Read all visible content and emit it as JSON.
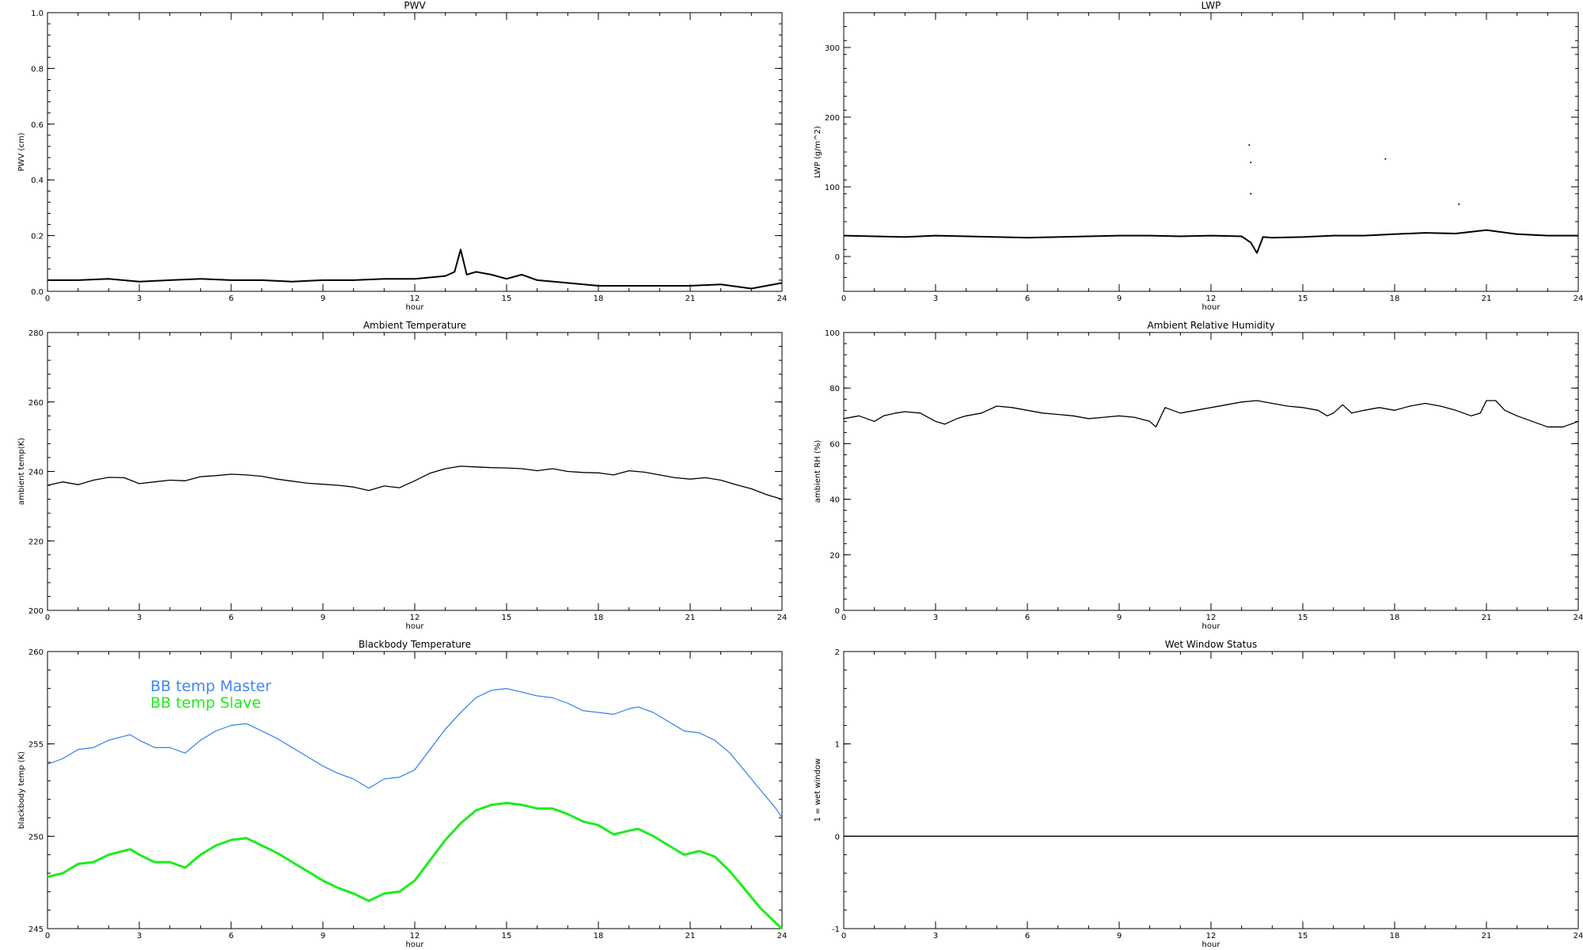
{
  "chart_data": [
    {
      "type": "line",
      "title": "PWV",
      "xlabel": "hour",
      "ylabel": "PWV (cm)",
      "xlim": [
        0,
        24
      ],
      "ylim": [
        0.0,
        1.0
      ],
      "xticks": [
        "0",
        "3",
        "6",
        "9",
        "12",
        "15",
        "18",
        "21",
        "24"
      ],
      "yticks": [
        "0.0",
        "0.2",
        "0.4",
        "0.6",
        "0.8",
        "1.0"
      ],
      "series": [
        {
          "color": "#000000",
          "x": [
            0,
            1,
            2,
            3,
            4,
            5,
            6,
            7,
            8,
            9,
            10,
            11,
            12,
            13,
            13.3,
            13.5,
            13.7,
            14,
            14.5,
            15,
            15.5,
            16,
            17,
            18,
            19,
            20,
            21,
            22,
            23,
            24
          ],
          "y": [
            0.04,
            0.04,
            0.045,
            0.035,
            0.04,
            0.045,
            0.04,
            0.04,
            0.035,
            0.04,
            0.04,
            0.045,
            0.045,
            0.055,
            0.07,
            0.15,
            0.06,
            0.07,
            0.06,
            0.045,
            0.06,
            0.04,
            0.03,
            0.02,
            0.02,
            0.02,
            0.02,
            0.025,
            0.01,
            0.03
          ]
        }
      ]
    },
    {
      "type": "line",
      "title": "LWP",
      "xlabel": "hour",
      "ylabel": "LWP (g/m^2)",
      "xlim": [
        0,
        24
      ],
      "ylim": [
        -50,
        350
      ],
      "xticks": [
        "0",
        "3",
        "6",
        "9",
        "12",
        "15",
        "18",
        "21",
        "24"
      ],
      "yticks": [
        "0",
        "100",
        "200",
        "300"
      ],
      "series": [
        {
          "color": "#000000",
          "x": [
            0,
            1,
            2,
            3,
            4,
            5,
            6,
            7,
            8,
            9,
            10,
            11,
            12,
            13,
            13.3,
            13.5,
            13.7,
            14,
            15,
            16,
            17,
            18,
            19,
            20,
            21,
            22,
            23,
            24
          ],
          "y": [
            30,
            29,
            28,
            30,
            29,
            28,
            27,
            28,
            29,
            30,
            30,
            29,
            30,
            29,
            20,
            5,
            28,
            27,
            28,
            30,
            30,
            32,
            34,
            33,
            38,
            32,
            30,
            30
          ]
        }
      ],
      "points": [
        {
          "x": 13.25,
          "y": 160
        },
        {
          "x": 13.3,
          "y": 135
        },
        {
          "x": 13.3,
          "y": 90
        },
        {
          "x": 17.7,
          "y": 140
        },
        {
          "x": 20.1,
          "y": 75
        }
      ]
    },
    {
      "type": "line",
      "title": "Ambient Temperature",
      "xlabel": "hour",
      "ylabel": "ambient temp(K)",
      "xlim": [
        0,
        24
      ],
      "ylim": [
        200,
        280
      ],
      "xticks": [
        "0",
        "3",
        "6",
        "9",
        "12",
        "15",
        "18",
        "21",
        "24"
      ],
      "yticks": [
        "200",
        "220",
        "240",
        "260",
        "280"
      ],
      "series": [
        {
          "color": "#000000",
          "x": [
            0,
            0.5,
            1,
            1.5,
            2,
            2.5,
            3,
            3.5,
            4,
            4.5,
            5,
            5.5,
            6,
            6.5,
            7,
            7.5,
            8,
            8.5,
            9,
            9.5,
            10,
            10.5,
            11,
            11.5,
            12,
            12.5,
            13,
            13.5,
            14,
            14.5,
            15,
            15.5,
            16,
            16.5,
            17,
            17.5,
            18,
            18.5,
            19,
            19.5,
            20,
            20.5,
            21,
            21.5,
            22,
            22.5,
            23,
            23.5,
            24
          ],
          "y": [
            236,
            237,
            236.2,
            237.5,
            238.3,
            238.2,
            236.5,
            237,
            237.5,
            237.3,
            238.5,
            238.8,
            239.2,
            239,
            238.6,
            237.8,
            237.2,
            236.6,
            236.3,
            236,
            235.5,
            234.5,
            235.8,
            235.3,
            237.3,
            239.5,
            240.8,
            241.5,
            241.3,
            241.1,
            241,
            240.8,
            240.2,
            240.8,
            240,
            239.7,
            239.6,
            239,
            240.2,
            239.8,
            239,
            238.2,
            237.8,
            238.2,
            237.5,
            236.2,
            235,
            233.3,
            232
          ]
        }
      ]
    },
    {
      "type": "line",
      "title": "Ambient Relative Humidity",
      "xlabel": "hour",
      "ylabel": "ambient RH (%)",
      "xlim": [
        0,
        24
      ],
      "ylim": [
        0,
        100
      ],
      "xticks": [
        "0",
        "3",
        "6",
        "9",
        "12",
        "15",
        "18",
        "21",
        "24"
      ],
      "yticks": [
        "0",
        "20",
        "40",
        "60",
        "80",
        "100"
      ],
      "series": [
        {
          "color": "#000000",
          "x": [
            0,
            0.5,
            1,
            1.3,
            1.7,
            2,
            2.5,
            3,
            3.3,
            3.7,
            4,
            4.5,
            5,
            5.5,
            6,
            6.5,
            7,
            7.5,
            8,
            8.5,
            9,
            9.5,
            10,
            10.2,
            10.5,
            11,
            11.5,
            12,
            12.5,
            13,
            13.5,
            14,
            14.5,
            15,
            15.5,
            15.8,
            16,
            16.3,
            16.6,
            17,
            17.5,
            18,
            18.5,
            19,
            19.5,
            20,
            20.5,
            20.8,
            21,
            21.3,
            21.6,
            22,
            22.5,
            23,
            23.5,
            24
          ],
          "y": [
            69,
            70,
            68,
            70,
            71,
            71.5,
            71,
            68,
            67,
            69,
            70,
            71,
            73.5,
            73,
            72,
            71,
            70.5,
            70,
            69,
            69.5,
            70,
            69.5,
            68,
            66,
            73,
            71,
            72,
            73,
            74,
            75,
            75.5,
            74.5,
            73.5,
            73,
            72,
            70,
            71,
            74,
            71,
            72,
            73,
            72,
            73.5,
            74.5,
            73.5,
            72,
            70,
            71,
            75.5,
            75.5,
            72,
            70,
            68,
            66,
            66,
            68
          ]
        }
      ]
    },
    {
      "type": "line",
      "title": "Blackbody Temperature",
      "xlabel": "hour",
      "ylabel": "blackbody temp (K)",
      "xlim": [
        0,
        24
      ],
      "ylim": [
        245,
        260
      ],
      "xticks": [
        "0",
        "3",
        "6",
        "9",
        "12",
        "15",
        "18",
        "21",
        "24"
      ],
      "yticks": [
        "245",
        "250",
        "255",
        "260"
      ],
      "legend": "top-left",
      "series": [
        {
          "name": "BB temp Master",
          "color": "#3f86f5",
          "x": [
            0,
            0.5,
            1,
            1.5,
            2,
            2.7,
            3,
            3.5,
            4,
            4.5,
            5,
            5.5,
            6,
            6.5,
            7,
            7.5,
            8,
            8.5,
            9,
            9.5,
            10,
            10.5,
            11,
            11.5,
            12,
            12.5,
            13,
            13.5,
            14,
            14.5,
            15,
            15.5,
            16,
            16.5,
            17,
            17.5,
            18,
            18.5,
            19,
            19.3,
            19.8,
            20.3,
            20.8,
            21.3,
            21.8,
            22.3,
            22.8,
            23.3,
            23.8,
            24
          ],
          "y": [
            253.9,
            254.2,
            254.7,
            254.8,
            255.2,
            255.5,
            255.2,
            254.8,
            254.8,
            254.5,
            255.2,
            255.7,
            256,
            256.1,
            255.7,
            255.3,
            254.8,
            254.3,
            253.8,
            253.4,
            253.1,
            252.6,
            253.1,
            253.2,
            253.6,
            254.7,
            255.8,
            256.7,
            257.5,
            257.9,
            258,
            257.8,
            257.6,
            257.5,
            257.2,
            256.8,
            256.7,
            256.6,
            256.9,
            257,
            256.7,
            256.2,
            255.7,
            255.6,
            255.2,
            254.5,
            253.5,
            252.5,
            251.5,
            251
          ]
        },
        {
          "name": "BB temp Slave",
          "color": "#1eec1e",
          "x": [
            0,
            0.5,
            1,
            1.5,
            2,
            2.7,
            3,
            3.5,
            4,
            4.5,
            5,
            5.5,
            6,
            6.5,
            7,
            7.5,
            8,
            8.5,
            9,
            9.5,
            10,
            10.5,
            11,
            11.5,
            12,
            12.5,
            13,
            13.5,
            14,
            14.5,
            15,
            15.5,
            16,
            16.5,
            17,
            17.5,
            18,
            18.5,
            19,
            19.3,
            19.8,
            20.3,
            20.8,
            21.3,
            21.8,
            22.3,
            22.8,
            23.3,
            23.8,
            24
          ],
          "y": [
            247.8,
            248,
            248.5,
            248.6,
            249,
            249.3,
            249,
            248.6,
            248.6,
            248.3,
            249,
            249.5,
            249.8,
            249.9,
            249.5,
            249.1,
            248.6,
            248.1,
            247.6,
            247.2,
            246.9,
            246.5,
            246.9,
            247,
            247.6,
            248.7,
            249.8,
            250.7,
            251.4,
            251.7,
            251.8,
            251.7,
            251.5,
            251.5,
            251.2,
            250.8,
            250.6,
            250.1,
            250.3,
            250.4,
            250,
            249.5,
            249,
            249.2,
            248.9,
            248.1,
            247.1,
            246.1,
            245.3,
            245
          ]
        }
      ]
    },
    {
      "type": "line",
      "title": "Wet Window Status",
      "xlabel": "hour",
      "ylabel": "1 = wet window",
      "xlim": [
        0,
        24
      ],
      "ylim": [
        -1,
        2
      ],
      "xticks": [
        "0",
        "3",
        "6",
        "9",
        "12",
        "15",
        "18",
        "21",
        "24"
      ],
      "yticks": [
        "-1",
        "0",
        "1",
        "2"
      ],
      "series": [
        {
          "color": "#000000",
          "x": [
            0,
            24
          ],
          "y": [
            0,
            0
          ]
        }
      ]
    }
  ]
}
